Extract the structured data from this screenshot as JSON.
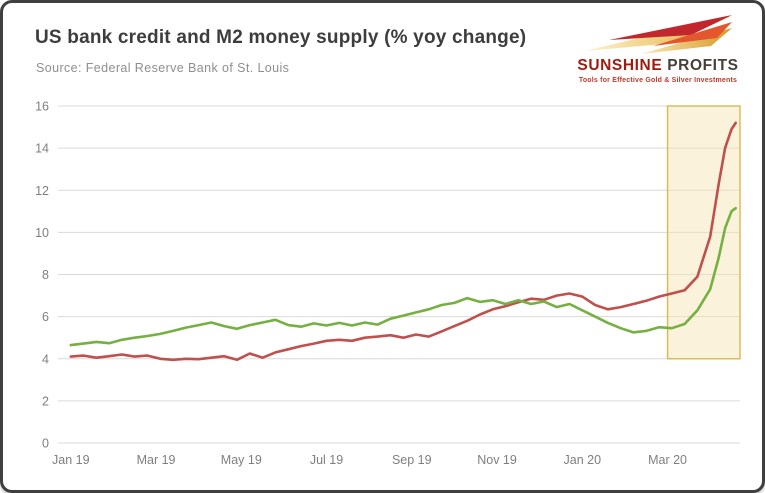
{
  "header": {
    "title": "US bank credit and M2 money supply (% yoy change)",
    "source": "Source: Federal Reserve Bank of St. Louis"
  },
  "logo": {
    "icon": "triple-arrow-icon",
    "name_primary": "SUNSHINE",
    "name_secondary": "PROFITS",
    "tagline": "Tools for Effective Gold & Silver Investments",
    "primary_color": "#9e1b10",
    "secondary_color": "#45413a",
    "tagline_color": "#c0392b"
  },
  "chart_data": {
    "type": "line",
    "title": "US bank credit and M2 money supply (% yoy change)",
    "subtitle": "Source: Federal Reserve Bank of St. Louis",
    "ylabel": "% yoy change",
    "xlim": [
      -0.3,
      15.7
    ],
    "ylim": [
      0,
      16
    ],
    "y_ticks": [
      0,
      2,
      4,
      6,
      8,
      10,
      12,
      14,
      16
    ],
    "x_ticks": [
      {
        "v": 0,
        "label": "Jan 19"
      },
      {
        "v": 2,
        "label": "Mar 19"
      },
      {
        "v": 4,
        "label": "May 19"
      },
      {
        "v": 6,
        "label": "Jul 19"
      },
      {
        "v": 8,
        "label": "Sep 19"
      },
      {
        "v": 10,
        "label": "Nov 19"
      },
      {
        "v": 12,
        "label": "Jan 20"
      },
      {
        "v": 14,
        "label": "Mar 20"
      }
    ],
    "grid_color": "#d9d9d9",
    "tick_color": "#7f7f7f",
    "grid": true,
    "legend": "none",
    "highlight": {
      "x0": 14.0,
      "x1": 15.7,
      "y0": 4,
      "y1": 16,
      "fill": "#f3e3ad",
      "fill_opacity": 0.45,
      "stroke": "#d9b954"
    },
    "series": [
      {
        "name": "US bank credit",
        "color": "#c0504d",
        "points": [
          [
            0,
            4.1
          ],
          [
            0.3,
            4.15
          ],
          [
            0.6,
            4.05
          ],
          [
            0.9,
            4.12
          ],
          [
            1.2,
            4.2
          ],
          [
            1.5,
            4.1
          ],
          [
            1.8,
            4.15
          ],
          [
            2.1,
            4.0
          ],
          [
            2.4,
            3.95
          ],
          [
            2.7,
            4.0
          ],
          [
            3.0,
            3.98
          ],
          [
            3.3,
            4.05
          ],
          [
            3.6,
            4.12
          ],
          [
            3.9,
            3.95
          ],
          [
            4.2,
            4.25
          ],
          [
            4.5,
            4.05
          ],
          [
            4.8,
            4.3
          ],
          [
            5.1,
            4.45
          ],
          [
            5.4,
            4.6
          ],
          [
            5.7,
            4.72
          ],
          [
            6.0,
            4.85
          ],
          [
            6.3,
            4.9
          ],
          [
            6.6,
            4.85
          ],
          [
            6.9,
            5.0
          ],
          [
            7.2,
            5.05
          ],
          [
            7.5,
            5.12
          ],
          [
            7.8,
            5.0
          ],
          [
            8.1,
            5.15
          ],
          [
            8.4,
            5.05
          ],
          [
            8.7,
            5.3
          ],
          [
            9.0,
            5.55
          ],
          [
            9.3,
            5.8
          ],
          [
            9.6,
            6.1
          ],
          [
            9.9,
            6.35
          ],
          [
            10.2,
            6.5
          ],
          [
            10.5,
            6.68
          ],
          [
            10.8,
            6.85
          ],
          [
            11.1,
            6.8
          ],
          [
            11.4,
            7.0
          ],
          [
            11.7,
            7.1
          ],
          [
            12.0,
            6.95
          ],
          [
            12.3,
            6.55
          ],
          [
            12.6,
            6.35
          ],
          [
            12.9,
            6.45
          ],
          [
            13.2,
            6.6
          ],
          [
            13.5,
            6.75
          ],
          [
            13.8,
            6.95
          ],
          [
            14.1,
            7.1
          ],
          [
            14.4,
            7.25
          ],
          [
            14.7,
            7.9
          ],
          [
            15.0,
            9.8
          ],
          [
            15.2,
            12.3
          ],
          [
            15.35,
            14.0
          ],
          [
            15.5,
            14.9
          ],
          [
            15.6,
            15.2
          ]
        ]
      },
      {
        "name": "M2 money supply",
        "color": "#76b043",
        "points": [
          [
            0,
            4.65
          ],
          [
            0.3,
            4.72
          ],
          [
            0.6,
            4.8
          ],
          [
            0.9,
            4.74
          ],
          [
            1.2,
            4.9
          ],
          [
            1.5,
            5.0
          ],
          [
            1.8,
            5.08
          ],
          [
            2.1,
            5.18
          ],
          [
            2.4,
            5.32
          ],
          [
            2.7,
            5.48
          ],
          [
            3.0,
            5.6
          ],
          [
            3.3,
            5.72
          ],
          [
            3.6,
            5.55
          ],
          [
            3.9,
            5.42
          ],
          [
            4.2,
            5.6
          ],
          [
            4.5,
            5.72
          ],
          [
            4.8,
            5.85
          ],
          [
            5.1,
            5.6
          ],
          [
            5.4,
            5.52
          ],
          [
            5.7,
            5.68
          ],
          [
            6.0,
            5.58
          ],
          [
            6.3,
            5.7
          ],
          [
            6.6,
            5.58
          ],
          [
            6.9,
            5.72
          ],
          [
            7.2,
            5.62
          ],
          [
            7.5,
            5.9
          ],
          [
            7.8,
            6.05
          ],
          [
            8.1,
            6.2
          ],
          [
            8.4,
            6.35
          ],
          [
            8.7,
            6.55
          ],
          [
            9.0,
            6.65
          ],
          [
            9.3,
            6.88
          ],
          [
            9.6,
            6.7
          ],
          [
            9.9,
            6.78
          ],
          [
            10.2,
            6.6
          ],
          [
            10.5,
            6.78
          ],
          [
            10.8,
            6.6
          ],
          [
            11.1,
            6.72
          ],
          [
            11.4,
            6.45
          ],
          [
            11.7,
            6.6
          ],
          [
            12.0,
            6.3
          ],
          [
            12.3,
            6.0
          ],
          [
            12.6,
            5.7
          ],
          [
            12.9,
            5.45
          ],
          [
            13.2,
            5.25
          ],
          [
            13.5,
            5.32
          ],
          [
            13.8,
            5.5
          ],
          [
            14.1,
            5.45
          ],
          [
            14.4,
            5.65
          ],
          [
            14.7,
            6.3
          ],
          [
            15.0,
            7.3
          ],
          [
            15.2,
            8.8
          ],
          [
            15.35,
            10.2
          ],
          [
            15.5,
            11.0
          ],
          [
            15.6,
            11.15
          ]
        ]
      }
    ]
  }
}
